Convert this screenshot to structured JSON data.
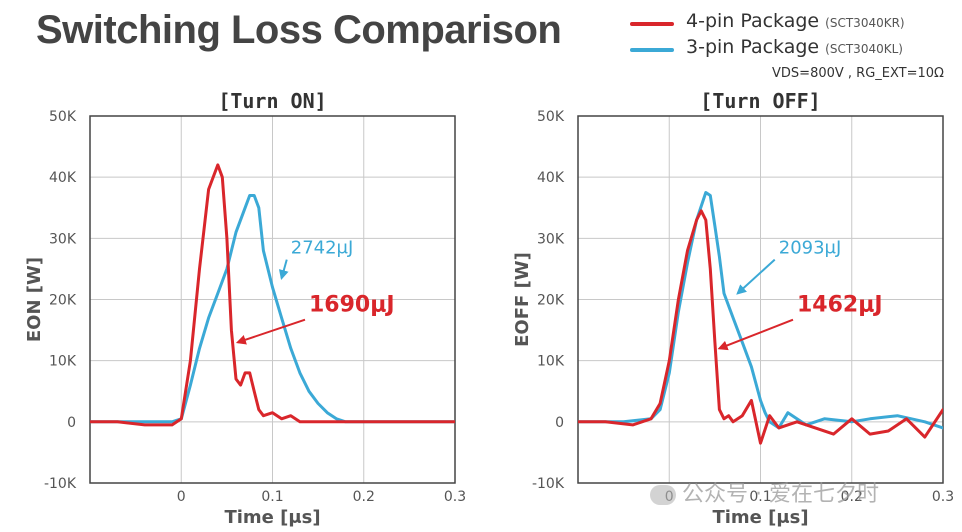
{
  "page": {
    "title": "Switching Loss Comparison",
    "condition": "VDS=800V , RG_EXT=10Ω"
  },
  "colors": {
    "red": "#d9262b",
    "blue": "#3ba9d6",
    "grid": "#c8c8c8",
    "axis": "#444444"
  },
  "legend": [
    {
      "label": "4-pin Package",
      "part": "(SCT3040KR)",
      "color": "#d9262b"
    },
    {
      "label": "3-pin Package",
      "part": "(SCT3040KL)",
      "color": "#3ba9d6"
    }
  ],
  "watermark": "公众号 · 爱在七夕时",
  "chart_data": [
    {
      "type": "line",
      "title": "[Turn ON]",
      "xlabel": "Time [μs]",
      "ylabel": "EON [W]",
      "xlim": [
        -0.1,
        0.3
      ],
      "ylim": [
        -10000,
        50000
      ],
      "xticks": [
        0,
        0.1,
        0.2,
        0.3
      ],
      "xtick_labels": [
        "0",
        "0.1",
        "0.2",
        "0.3"
      ],
      "yticks": [
        -10000,
        0,
        10000,
        20000,
        30000,
        40000,
        50000
      ],
      "ytick_labels": [
        "-10K",
        "0",
        "10K",
        "20K",
        "30K",
        "40K",
        "50K"
      ],
      "grid": true,
      "series": [
        {
          "name": "4-pin Package (SCT3040KR)",
          "color": "#d9262b",
          "x": [
            -0.1,
            -0.07,
            -0.04,
            -0.01,
            0.0,
            0.01,
            0.02,
            0.03,
            0.04,
            0.045,
            0.05,
            0.055,
            0.06,
            0.065,
            0.07,
            0.075,
            0.08,
            0.085,
            0.09,
            0.1,
            0.11,
            0.12,
            0.13,
            0.15,
            0.2,
            0.25,
            0.3
          ],
          "y": [
            0,
            0,
            -500,
            -500,
            500,
            10000,
            25000,
            38000,
            42000,
            40000,
            30000,
            15000,
            7000,
            6000,
            8000,
            8000,
            5000,
            2000,
            1000,
            1500,
            500,
            1000,
            0,
            0,
            0,
            0,
            0
          ]
        },
        {
          "name": "3-pin Package (SCT3040KL)",
          "color": "#3ba9d6",
          "x": [
            -0.1,
            -0.05,
            -0.01,
            0.0,
            0.01,
            0.02,
            0.03,
            0.04,
            0.05,
            0.06,
            0.07,
            0.075,
            0.08,
            0.085,
            0.09,
            0.1,
            0.11,
            0.12,
            0.13,
            0.14,
            0.15,
            0.16,
            0.17,
            0.18,
            0.2,
            0.25,
            0.3
          ],
          "y": [
            0,
            0,
            0,
            500,
            6000,
            12000,
            17000,
            21000,
            25000,
            31000,
            35000,
            37000,
            37000,
            35000,
            28000,
            22000,
            17000,
            12000,
            8000,
            5000,
            3000,
            1500,
            500,
            0,
            0,
            0,
            0
          ]
        }
      ],
      "annotations": [
        {
          "text": "2742μJ",
          "color": "#3ba9d6",
          "x": 0.12,
          "y": 27500,
          "target_x": 0.11,
          "target_y": 23500
        },
        {
          "text": "1690μJ",
          "color": "#d9262b",
          "x": 0.14,
          "y": 18000,
          "target_x": 0.062,
          "target_y": 13000
        }
      ]
    },
    {
      "type": "line",
      "title": "[Turn OFF]",
      "xlabel": "Time [μs]",
      "ylabel": "EOFF [W]",
      "xlim": [
        -0.1,
        0.3
      ],
      "ylim": [
        -10000,
        50000
      ],
      "xticks": [
        0,
        0.1,
        0.2,
        0.3
      ],
      "xtick_labels": [
        "0",
        "0.1",
        "0.2",
        "0.3"
      ],
      "yticks": [
        -10000,
        0,
        10000,
        20000,
        30000,
        40000,
        50000
      ],
      "ytick_labels": [
        "-10K",
        "0",
        "10K",
        "20K",
        "30K",
        "40K",
        "50K"
      ],
      "grid": true,
      "series": [
        {
          "name": "4-pin Package (SCT3040KR)",
          "color": "#d9262b",
          "x": [
            -0.1,
            -0.07,
            -0.04,
            -0.02,
            -0.01,
            0.0,
            0.01,
            0.02,
            0.03,
            0.035,
            0.04,
            0.045,
            0.05,
            0.055,
            0.06,
            0.065,
            0.07,
            0.08,
            0.09,
            0.1,
            0.11,
            0.12,
            0.14,
            0.16,
            0.18,
            0.2,
            0.22,
            0.24,
            0.26,
            0.28,
            0.3
          ],
          "y": [
            0,
            0,
            -500,
            500,
            3000,
            10000,
            20000,
            28000,
            33000,
            34500,
            33000,
            25000,
            13000,
            2000,
            500,
            1000,
            0,
            1000,
            3500,
            -3500,
            1000,
            -1000,
            0,
            -1000,
            -2000,
            500,
            -2000,
            -1500,
            500,
            -2500,
            2000
          ]
        },
        {
          "name": "3-pin Package (SCT3040KL)",
          "color": "#3ba9d6",
          "x": [
            -0.1,
            -0.05,
            -0.02,
            -0.01,
            0.0,
            0.01,
            0.02,
            0.03,
            0.04,
            0.045,
            0.05,
            0.055,
            0.06,
            0.07,
            0.08,
            0.09,
            0.1,
            0.105,
            0.11,
            0.12,
            0.13,
            0.15,
            0.17,
            0.2,
            0.22,
            0.25,
            0.28,
            0.3
          ],
          "y": [
            0,
            0,
            500,
            2000,
            8000,
            18000,
            26000,
            33000,
            37500,
            37000,
            32000,
            27000,
            21000,
            17000,
            13000,
            9000,
            3500,
            1500,
            0,
            -1000,
            1500,
            -500,
            500,
            0,
            500,
            1000,
            0,
            -1000
          ]
        }
      ],
      "annotations": [
        {
          "text": "2093μJ",
          "color": "#3ba9d6",
          "x": 0.12,
          "y": 27500,
          "target_x": 0.075,
          "target_y": 21000
        },
        {
          "text": "1462μJ",
          "color": "#d9262b",
          "x": 0.14,
          "y": 18000,
          "target_x": 0.055,
          "target_y": 12000
        }
      ]
    }
  ]
}
